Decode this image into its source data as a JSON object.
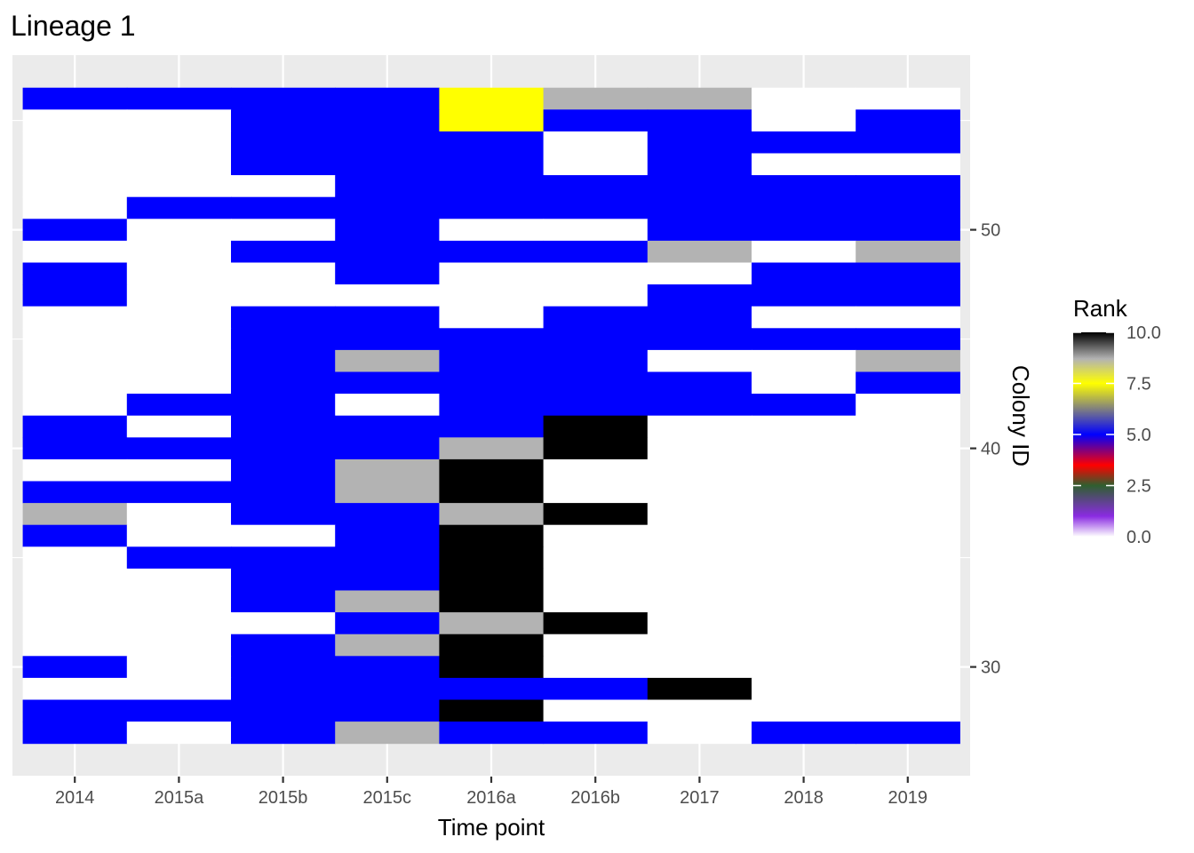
{
  "chart_data": {
    "type": "heatmap",
    "title": "Lineage 1",
    "xlabel": "Time point",
    "ylabel": "Colony ID",
    "categories": [
      "2014",
      "2015a",
      "2015b",
      "2015c",
      "2016a",
      "2016b",
      "2017",
      "2018",
      "2019"
    ],
    "y_ticks": [
      30,
      40,
      50
    ],
    "y_tick_labels": [
      "30",
      "40",
      "50"
    ],
    "ylim": [
      27,
      56
    ],
    "y_axis_position": "right",
    "grid": true,
    "legend": {
      "title": "Rank",
      "position": "right",
      "min": 0,
      "max": 10,
      "ticks": [
        0,
        2.5,
        5,
        7.5,
        10
      ],
      "tick_labels": [
        "0.0",
        "2.5",
        "5.0",
        "7.5",
        "10.0"
      ],
      "colors": [
        "#ffffff",
        "#8a2be2",
        "#2f5f2f",
        "#ff0000",
        "#0000ff",
        "#ffff00",
        "#b3b3b3",
        "#000000"
      ],
      "stops": [
        0,
        0.1,
        0.25,
        0.35,
        0.5,
        0.75,
        0.87,
        1.0
      ]
    },
    "value_colors": {
      "0": "#ffffff",
      "6": "#0000ff",
      "8": "#ffff00",
      "9": "#b3b3b3",
      "10": "#000000"
    },
    "series": [
      {
        "y": 56,
        "values": [
          6,
          6,
          6,
          6,
          8,
          9,
          9,
          0,
          0
        ]
      },
      {
        "y": 55,
        "values": [
          0,
          0,
          6,
          6,
          8,
          6,
          6,
          0,
          6
        ]
      },
      {
        "y": 54,
        "values": [
          0,
          0,
          6,
          6,
          6,
          0,
          6,
          6,
          6
        ]
      },
      {
        "y": 53,
        "values": [
          0,
          0,
          6,
          6,
          6,
          0,
          6,
          0,
          0
        ]
      },
      {
        "y": 52,
        "values": [
          0,
          0,
          0,
          6,
          6,
          6,
          6,
          6,
          6
        ]
      },
      {
        "y": 51,
        "values": [
          0,
          6,
          6,
          6,
          6,
          6,
          6,
          6,
          6
        ]
      },
      {
        "y": 50,
        "values": [
          6,
          0,
          0,
          6,
          0,
          0,
          6,
          6,
          6
        ]
      },
      {
        "y": 49,
        "values": [
          0,
          0,
          6,
          6,
          6,
          6,
          9,
          0,
          9
        ]
      },
      {
        "y": 48,
        "values": [
          6,
          0,
          0,
          6,
          0,
          0,
          0,
          6,
          6
        ]
      },
      {
        "y": 47,
        "values": [
          6,
          0,
          0,
          0,
          0,
          0,
          6,
          6,
          6
        ]
      },
      {
        "y": 46,
        "values": [
          0,
          0,
          6,
          6,
          0,
          6,
          6,
          0,
          0
        ]
      },
      {
        "y": 45,
        "values": [
          0,
          0,
          6,
          6,
          6,
          6,
          6,
          6,
          6
        ]
      },
      {
        "y": 44,
        "values": [
          0,
          0,
          6,
          9,
          6,
          6,
          0,
          0,
          9
        ]
      },
      {
        "y": 43,
        "values": [
          0,
          0,
          6,
          6,
          6,
          6,
          6,
          0,
          6
        ]
      },
      {
        "y": 42,
        "values": [
          0,
          6,
          6,
          0,
          6,
          6,
          6,
          6,
          0
        ]
      },
      {
        "y": 41,
        "values": [
          6,
          0,
          6,
          6,
          6,
          10,
          0,
          0,
          0
        ]
      },
      {
        "y": 40,
        "values": [
          6,
          6,
          6,
          6,
          9,
          10,
          0,
          0,
          0
        ]
      },
      {
        "y": 39,
        "values": [
          0,
          0,
          6,
          9,
          10,
          0,
          0,
          0,
          0
        ]
      },
      {
        "y": 38,
        "values": [
          6,
          6,
          6,
          9,
          10,
          0,
          0,
          0,
          0
        ]
      },
      {
        "y": 37,
        "values": [
          9,
          0,
          6,
          6,
          9,
          10,
          0,
          0,
          0
        ]
      },
      {
        "y": 36,
        "values": [
          6,
          0,
          0,
          6,
          10,
          0,
          0,
          0,
          0
        ]
      },
      {
        "y": 35,
        "values": [
          0,
          6,
          6,
          6,
          10,
          0,
          0,
          0,
          0
        ]
      },
      {
        "y": 34,
        "values": [
          0,
          0,
          6,
          6,
          10,
          0,
          0,
          0,
          0
        ]
      },
      {
        "y": 33,
        "values": [
          0,
          0,
          6,
          9,
          10,
          0,
          0,
          0,
          0
        ]
      },
      {
        "y": 32,
        "values": [
          0,
          0,
          0,
          6,
          9,
          10,
          0,
          0,
          0
        ]
      },
      {
        "y": 31,
        "values": [
          0,
          0,
          6,
          9,
          10,
          0,
          0,
          0,
          0
        ]
      },
      {
        "y": 30,
        "values": [
          6,
          0,
          6,
          6,
          10,
          0,
          0,
          0,
          0
        ]
      },
      {
        "y": 29,
        "values": [
          0,
          0,
          6,
          6,
          6,
          6,
          10,
          0,
          0
        ]
      },
      {
        "y": 28,
        "values": [
          6,
          6,
          6,
          6,
          10,
          0,
          0,
          0,
          0
        ]
      },
      {
        "y": 27,
        "values": [
          6,
          0,
          6,
          9,
          6,
          6,
          0,
          6,
          6
        ]
      }
    ]
  }
}
